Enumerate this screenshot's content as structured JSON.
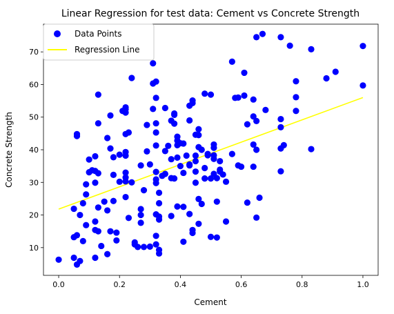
{
  "chart_data": {
    "type": "scatter",
    "title": "Linear Regression for test data: Cement vs Concrete Strength",
    "xlabel": "Cement",
    "ylabel": "Concrete Strength",
    "xlim": [
      -0.05,
      1.05
    ],
    "ylim": [
      1.5,
      78.5
    ],
    "xticks": [
      0.0,
      0.2,
      0.4,
      0.6,
      0.8,
      1.0
    ],
    "xtick_labels": [
      "0.0",
      "0.2",
      "0.4",
      "0.6",
      "0.8",
      "1.0"
    ],
    "yticks": [
      10,
      20,
      30,
      40,
      50,
      60,
      70
    ],
    "ytick_labels": [
      "10",
      "20",
      "30",
      "40",
      "50",
      "60",
      "70"
    ],
    "grid": false,
    "legend_position": "top-left",
    "series": [
      {
        "name": "Data Points",
        "kind": "scatter",
        "color": "#0000ff",
        "points": [
          [
            0.0,
            6.3
          ],
          [
            0.05,
            6.9
          ],
          [
            0.06,
            4.8
          ],
          [
            0.07,
            5.9
          ],
          [
            0.06,
            13.8
          ],
          [
            0.05,
            13.2
          ],
          [
            0.08,
            12.0
          ],
          [
            0.09,
            16.9
          ],
          [
            0.05,
            21.9
          ],
          [
            0.07,
            20.0
          ],
          [
            0.08,
            23.6
          ],
          [
            0.09,
            26.3
          ],
          [
            0.09,
            29.4
          ],
          [
            0.06,
            44.8
          ],
          [
            0.06,
            44.2
          ],
          [
            0.1,
            33.1
          ],
          [
            0.1,
            37.0
          ],
          [
            0.11,
            33.7
          ],
          [
            0.12,
            38.0
          ],
          [
            0.12,
            33.5
          ],
          [
            0.12,
            29.9
          ],
          [
            0.13,
            32.8
          ],
          [
            0.13,
            48.1
          ],
          [
            0.13,
            56.9
          ],
          [
            0.13,
            22.3
          ],
          [
            0.12,
            18.0
          ],
          [
            0.12,
            15.4
          ],
          [
            0.13,
            15.0
          ],
          [
            0.14,
            10.5
          ],
          [
            0.12,
            6.9
          ],
          [
            0.15,
            24.1
          ],
          [
            0.16,
            21.4
          ],
          [
            0.16,
            43.6
          ],
          [
            0.17,
            40.4
          ],
          [
            0.17,
            50.5
          ],
          [
            0.18,
            37.7
          ],
          [
            0.18,
            32.3
          ],
          [
            0.18,
            24.3
          ],
          [
            0.17,
            15.0
          ],
          [
            0.19,
            14.6
          ],
          [
            0.19,
            12.2
          ],
          [
            0.16,
            8.0
          ],
          [
            0.2,
            30.2
          ],
          [
            0.2,
            38.5
          ],
          [
            0.21,
            51.9
          ],
          [
            0.22,
            52.4
          ],
          [
            0.22,
            53.0
          ],
          [
            0.22,
            51.4
          ],
          [
            0.23,
            45.3
          ],
          [
            0.22,
            44.8
          ],
          [
            0.22,
            39.3
          ],
          [
            0.22,
            38.2
          ],
          [
            0.22,
            33.0
          ],
          [
            0.22,
            31.5
          ],
          [
            0.22,
            30.3
          ],
          [
            0.22,
            25.5
          ],
          [
            0.23,
            19.1
          ],
          [
            0.24,
            30.0
          ],
          [
            0.24,
            62.0
          ],
          [
            0.25,
            11.0
          ],
          [
            0.25,
            11.6
          ],
          [
            0.26,
            10.2
          ],
          [
            0.27,
            20.0
          ],
          [
            0.27,
            17.6
          ],
          [
            0.27,
            21.8
          ],
          [
            0.27,
            35.2
          ],
          [
            0.28,
            27.6
          ],
          [
            0.28,
            10.2
          ],
          [
            0.29,
            39.5
          ],
          [
            0.29,
            47.6
          ],
          [
            0.3,
            10.3
          ],
          [
            0.3,
            35.5
          ],
          [
            0.31,
            52.5
          ],
          [
            0.31,
            60.3
          ],
          [
            0.31,
            66.5
          ],
          [
            0.32,
            60.9
          ],
          [
            0.32,
            48.1
          ],
          [
            0.32,
            55.9
          ],
          [
            0.32,
            45.3
          ],
          [
            0.32,
            41.3
          ],
          [
            0.32,
            33.2
          ],
          [
            0.32,
            30.9
          ],
          [
            0.32,
            29.8
          ],
          [
            0.33,
            26.8
          ],
          [
            0.33,
            23.6
          ],
          [
            0.32,
            20.2
          ],
          [
            0.33,
            19.5
          ],
          [
            0.33,
            18.6
          ],
          [
            0.32,
            13.6
          ],
          [
            0.32,
            11.0
          ],
          [
            0.33,
            9.3
          ],
          [
            0.33,
            8.2
          ],
          [
            0.34,
            32.0
          ],
          [
            0.35,
            32.6
          ],
          [
            0.35,
            52.8
          ],
          [
            0.35,
            39.6
          ],
          [
            0.36,
            41.2
          ],
          [
            0.37,
            48.9
          ],
          [
            0.37,
            37.1
          ],
          [
            0.37,
            31.3
          ],
          [
            0.37,
            19.7
          ],
          [
            0.38,
            31.2
          ],
          [
            0.38,
            51.1
          ],
          [
            0.38,
            50.7
          ],
          [
            0.38,
            48.0
          ],
          [
            0.39,
            44.0
          ],
          [
            0.39,
            42.8
          ],
          [
            0.39,
            41.4
          ],
          [
            0.39,
            37.6
          ],
          [
            0.39,
            22.6
          ],
          [
            0.4,
            42.0
          ],
          [
            0.41,
            41.9
          ],
          [
            0.4,
            35.0
          ],
          [
            0.41,
            32.9
          ],
          [
            0.41,
            22.5
          ],
          [
            0.41,
            11.8
          ],
          [
            0.42,
            38.2
          ],
          [
            0.43,
            53.5
          ],
          [
            0.43,
            49.0
          ],
          [
            0.43,
            35.2
          ],
          [
            0.43,
            35.5
          ],
          [
            0.43,
            20.3
          ],
          [
            0.44,
            55.1
          ],
          [
            0.44,
            54.3
          ],
          [
            0.44,
            15.4
          ],
          [
            0.44,
            14.5
          ],
          [
            0.45,
            36.5
          ],
          [
            0.45,
            44.6
          ],
          [
            0.45,
            38.2
          ],
          [
            0.45,
            33.3
          ],
          [
            0.45,
            29.9
          ],
          [
            0.46,
            17.3
          ],
          [
            0.47,
            23.4
          ],
          [
            0.46,
            24.9
          ],
          [
            0.46,
            40.8
          ],
          [
            0.46,
            46.3
          ],
          [
            0.46,
            44.5
          ],
          [
            0.47,
            40.0
          ],
          [
            0.48,
            57.2
          ],
          [
            0.48,
            34.4
          ],
          [
            0.48,
            31.2
          ],
          [
            0.49,
            38.7
          ],
          [
            0.49,
            38.3
          ],
          [
            0.5,
            31.2
          ],
          [
            0.5,
            13.3
          ],
          [
            0.5,
            56.9
          ],
          [
            0.51,
            41.6
          ],
          [
            0.51,
            40.6
          ],
          [
            0.51,
            38.3
          ],
          [
            0.51,
            37.2
          ],
          [
            0.51,
            32.6
          ],
          [
            0.52,
            13.1
          ],
          [
            0.52,
            24.1
          ],
          [
            0.52,
            31.3
          ],
          [
            0.53,
            33.3
          ],
          [
            0.53,
            36.5
          ],
          [
            0.53,
            33.9
          ],
          [
            0.54,
            32.4
          ],
          [
            0.55,
            30.2
          ],
          [
            0.55,
            18.0
          ],
          [
            0.57,
            67.0
          ],
          [
            0.57,
            38.7
          ],
          [
            0.58,
            55.9
          ],
          [
            0.59,
            35.2
          ],
          [
            0.59,
            56.0
          ],
          [
            0.6,
            34.8
          ],
          [
            0.61,
            63.6
          ],
          [
            0.61,
            56.6
          ],
          [
            0.62,
            47.8
          ],
          [
            0.62,
            23.8
          ],
          [
            0.64,
            55.4
          ],
          [
            0.64,
            50.2
          ],
          [
            0.64,
            41.6
          ],
          [
            0.64,
            34.8
          ],
          [
            0.65,
            74.5
          ],
          [
            0.65,
            48.8
          ],
          [
            0.65,
            40.0
          ],
          [
            0.65,
            19.2
          ],
          [
            0.66,
            25.3
          ],
          [
            0.67,
            75.5
          ],
          [
            0.68,
            52.2
          ],
          [
            0.73,
            74.5
          ],
          [
            0.73,
            49.4
          ],
          [
            0.73,
            46.9
          ],
          [
            0.73,
            40.4
          ],
          [
            0.73,
            33.4
          ],
          [
            0.74,
            41.4
          ],
          [
            0.76,
            71.9
          ],
          [
            0.78,
            61.0
          ],
          [
            0.78,
            56.1
          ],
          [
            0.78,
            51.9
          ],
          [
            0.83,
            70.8
          ],
          [
            0.83,
            40.2
          ],
          [
            0.88,
            61.9
          ],
          [
            0.91,
            63.9
          ],
          [
            1.0,
            71.8
          ],
          [
            1.0,
            59.7
          ]
        ]
      },
      {
        "name": "Regression Line",
        "kind": "line",
        "color": "#ffff00",
        "points": [
          [
            0.0,
            21.8
          ],
          [
            1.0,
            56.0
          ]
        ]
      }
    ]
  }
}
